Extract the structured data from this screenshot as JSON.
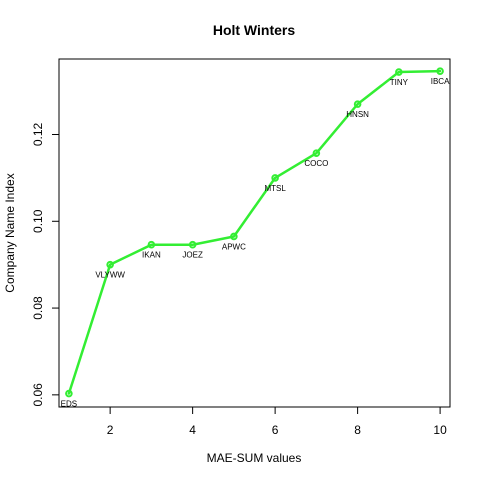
{
  "chart_data": {
    "type": "line",
    "title": "Holt Winters",
    "xlabel": "MAE-SUM values",
    "ylabel": "Company Name Index",
    "xlim": [
      0.76,
      10.24
    ],
    "ylim": [
      0.0572,
      0.1374
    ],
    "x_ticks": [
      2,
      4,
      6,
      8,
      10
    ],
    "y_ticks": [
      0.06,
      0.08,
      0.1,
      0.12
    ],
    "x_tick_labels": [
      "2",
      "4",
      "6",
      "8",
      "10"
    ],
    "y_tick_labels": [
      "0.06",
      "0.08",
      "0.10",
      "0.12"
    ],
    "grid": false,
    "line_color": "#33ee33",
    "series": [
      {
        "x": [
          1,
          2,
          3,
          4,
          5,
          6,
          7,
          8,
          9,
          10
        ],
        "y": [
          0.0603,
          0.09,
          0.0946,
          0.0946,
          0.0965,
          0.11,
          0.1157,
          0.127,
          0.1344,
          0.1346
        ],
        "labels": [
          "EDS",
          "VLYWW",
          "IKAN",
          "JOEZ",
          "APWC",
          "MTSL",
          "COCO",
          "HNSN",
          "TINY",
          "IBCA"
        ]
      }
    ]
  }
}
